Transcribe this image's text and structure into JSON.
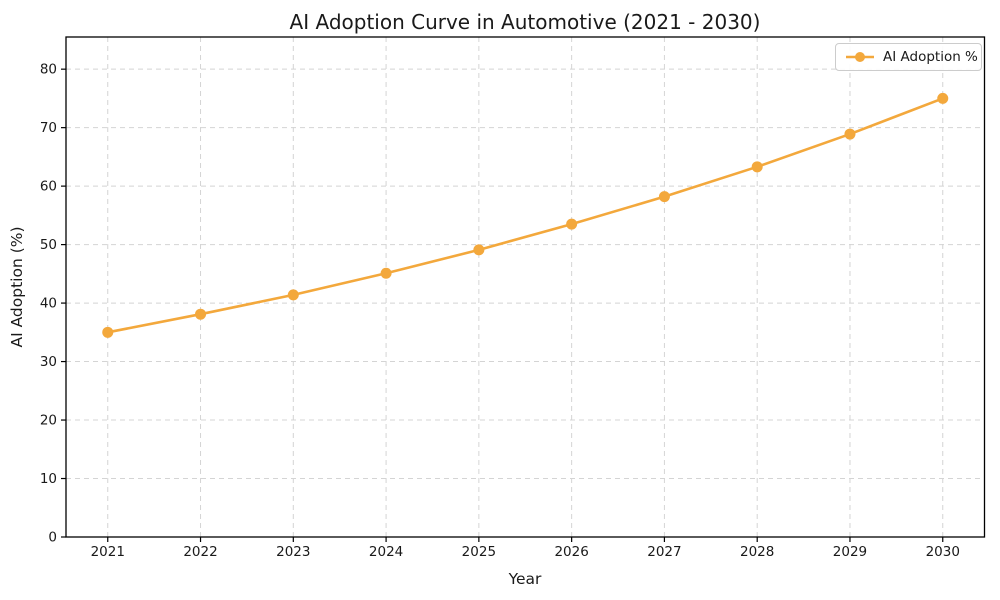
{
  "chart_data": {
    "type": "line",
    "title": "AI Adoption Curve in Automotive (2021 - 2030)",
    "xlabel": "Year",
    "ylabel": "AI Adoption (%)",
    "x": [
      2021,
      2022,
      2023,
      2024,
      2025,
      2026,
      2027,
      2028,
      2029,
      2030
    ],
    "series": [
      {
        "name": "AI Adoption %",
        "values": [
          35.0,
          38.1,
          41.4,
          45.1,
          49.1,
          53.5,
          58.2,
          63.3,
          68.9,
          75.0
        ],
        "marker": "circle"
      }
    ],
    "xlim": [
      2020.55,
      2030.45
    ],
    "ylim": [
      0,
      85.5
    ],
    "yticks": [
      0,
      10,
      20,
      30,
      40,
      50,
      60,
      70,
      80
    ],
    "grid": true,
    "grid_style": "dashed",
    "legend": {
      "position": "upper-right",
      "entries": [
        "AI Adoption %"
      ]
    },
    "colors": {
      "line": "#F3A83C",
      "grid": "#d4d4d4",
      "axis": "#000000",
      "text": "#1a1a1a"
    }
  }
}
